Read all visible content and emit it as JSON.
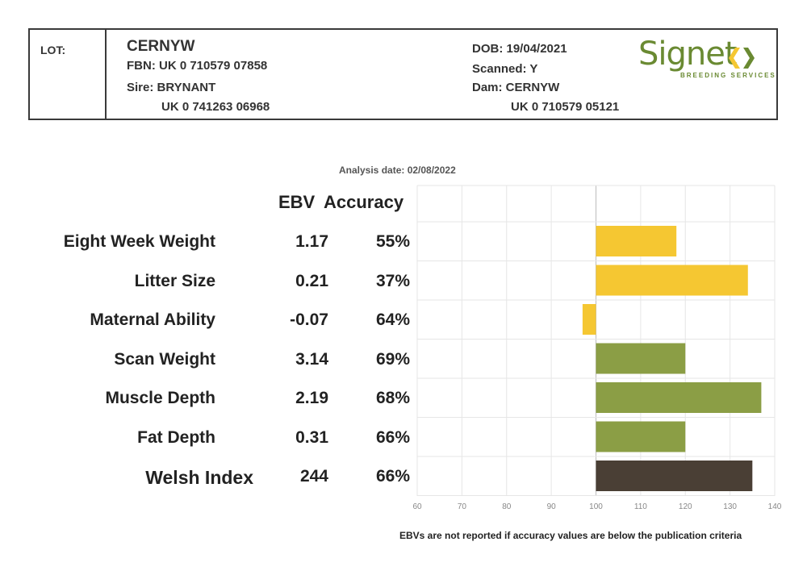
{
  "header": {
    "lot_label": "LOT:",
    "name": "CERNYW",
    "fbn": "FBN: UK 0 710579 07858",
    "sire": "Sire: BRYNANT",
    "sire_id": "UK 0 741263 06968",
    "dob": "DOB: 19/04/2021",
    "scanned": "Scanned: Y",
    "dam": "Dam: CERNYW",
    "dam_id": "UK 0 710579 05121",
    "logo_word": "Signet",
    "logo_sub": "BREEDING SERVICES"
  },
  "analysis_date": "Analysis date: 02/08/2022",
  "columns": {
    "ebv": "EBV",
    "accuracy": "Accuracy"
  },
  "footnote": "EBVs are not reported if accuracy values are below the publication criteria",
  "colors": {
    "yellow": "#f5c732",
    "green": "#8b9e45",
    "brown": "#4a3f35"
  },
  "rows": [
    {
      "label": "Eight Week Weight",
      "ebv": "1.17",
      "accuracy": "55%"
    },
    {
      "label": "Litter Size",
      "ebv": "0.21",
      "accuracy": "37%"
    },
    {
      "label": "Maternal Ability",
      "ebv": "-0.07",
      "accuracy": "64%"
    },
    {
      "label": "Scan Weight",
      "ebv": "3.14",
      "accuracy": "69%"
    },
    {
      "label": "Muscle Depth",
      "ebv": "2.19",
      "accuracy": "68%"
    },
    {
      "label": "Fat Depth",
      "ebv": "0.31",
      "accuracy": "66%"
    },
    {
      "label": "Welsh Index",
      "ebv": "244",
      "accuracy": "66%"
    }
  ],
  "chart_data": {
    "type": "bar",
    "orientation": "horizontal",
    "categories": [
      "Eight Week Weight",
      "Litter Size",
      "Maternal Ability",
      "Scan Weight",
      "Muscle Depth",
      "Fat Depth",
      "Welsh Index"
    ],
    "values": [
      118,
      134,
      97,
      120,
      137,
      120,
      135
    ],
    "baseline": 100,
    "bar_colors": [
      "yellow",
      "yellow",
      "yellow",
      "green",
      "green",
      "green",
      "brown"
    ],
    "xlim": [
      60,
      140
    ],
    "xticks": [
      "60",
      "70",
      "80",
      "90",
      "100",
      "110",
      "120",
      "130",
      "140"
    ],
    "grid": true
  }
}
